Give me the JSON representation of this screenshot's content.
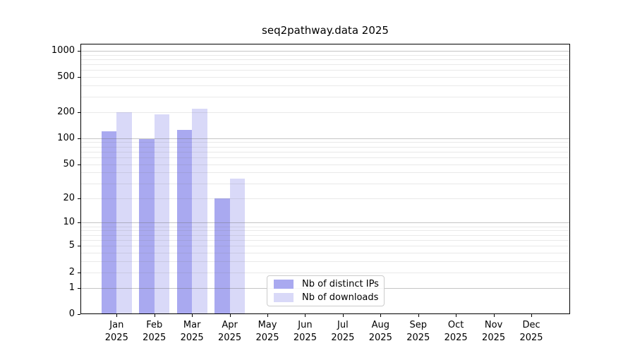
{
  "figure": {
    "title": "seq2pathway.data 2025"
  },
  "chart_data": {
    "type": "bar",
    "title": "seq2pathway.data 2025",
    "x_year": "2025",
    "categories": [
      "Jan",
      "Feb",
      "Mar",
      "Apr",
      "May",
      "Jun",
      "Jul",
      "Aug",
      "Sep",
      "Oct",
      "Nov",
      "Dec"
    ],
    "series": [
      {
        "name": "Nb of distinct IPs",
        "color": "#a9a9f0",
        "values": [
          120,
          98,
          124,
          20,
          0,
          0,
          0,
          0,
          0,
          0,
          0,
          0
        ]
      },
      {
        "name": "Nb of downloads",
        "color": "#d9d9f8",
        "values": [
          200,
          188,
          216,
          34,
          0,
          0,
          0,
          0,
          0,
          0,
          0,
          0
        ]
      }
    ],
    "y_ticks": [
      1000,
      500,
      200,
      100,
      50,
      20,
      10,
      5,
      2,
      1,
      0
    ],
    "y_scale": "log10(1+value)",
    "y_max": 1200,
    "ylim": [
      0,
      1200
    ],
    "grid": {
      "major_at": [
        1,
        10,
        100,
        1000
      ],
      "minor_multiples": [
        2,
        3,
        4,
        5,
        6,
        7,
        8,
        9
      ],
      "major_color": "#c6c6c6",
      "minor_color": "#e9e9e9",
      "grid_on": true
    },
    "legend": {
      "labels": [
        "Nb of distinct IPs",
        "Nb of downloads"
      ],
      "position": "lower-center"
    },
    "axis_color": "#000000",
    "background": "#ffffff"
  }
}
